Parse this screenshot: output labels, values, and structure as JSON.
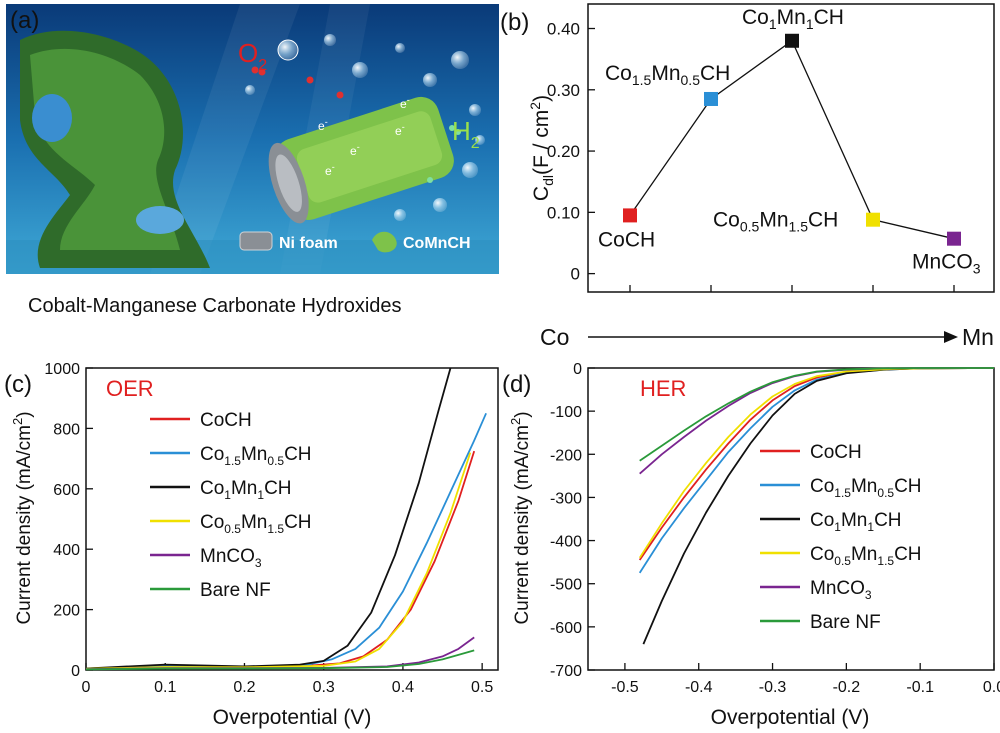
{
  "panels": {
    "a": {
      "label": "(a)",
      "caption": "Cobalt-Manganese Carbonate Hydroxides",
      "o2": "O",
      "o2_sub": "2",
      "h2": "H",
      "h2_sub": "2",
      "electron": "e",
      "electron_sup": "-",
      "legend_nifoam": "Ni foam",
      "legend_comnch": "CoMnCH"
    },
    "b": {
      "label": "(b)"
    },
    "c": {
      "label": "(c)"
    },
    "d": {
      "label": "(d)"
    }
  },
  "colors": {
    "CoCH": "#e02020",
    "Co1.5Mn0.5CH": "#2a8fd6",
    "Co1Mn1CH": "#111111",
    "Co0.5Mn1.5CH": "#f0e000",
    "MnCO3": "#7a2590",
    "BareNF": "#2a9a3a"
  },
  "chart_data": [
    {
      "panel": "b",
      "type": "line",
      "x_tick_labels": [
        "Co",
        "Mn"
      ],
      "ylabel": {
        "main": "C",
        "sub": "dl",
        "rest": "(F / cm",
        "sup": "2",
        "end": ")"
      },
      "ylim": [
        -0.03,
        0.44
      ],
      "y_ticks": [
        "0",
        "0.10",
        "0.20",
        "0.30",
        "0.40"
      ],
      "y_tick_values": [
        0,
        0.1,
        0.2,
        0.3,
        0.4
      ],
      "points": [
        {
          "key": "CoCH",
          "x": 1,
          "y": 0.095,
          "label": [
            [
              "CoCH",
              ""
            ]
          ],
          "color": "CoCH"
        },
        {
          "key": "Co1.5Mn0.5CH",
          "x": 2,
          "y": 0.285,
          "label": [
            [
              "Co",
              ""
            ],
            [
              "1.5",
              "sub"
            ],
            [
              "Mn",
              ""
            ],
            [
              "0.5",
              "sub"
            ],
            [
              "CH",
              ""
            ]
          ],
          "color": "Co1.5Mn0.5CH"
        },
        {
          "key": "Co1Mn1CH",
          "x": 3,
          "y": 0.38,
          "label": [
            [
              "Co",
              ""
            ],
            [
              "1",
              "sub"
            ],
            [
              "Mn",
              ""
            ],
            [
              "1",
              "sub"
            ],
            [
              "CH",
              ""
            ]
          ],
          "color": "Co1Mn1CH"
        },
        {
          "key": "Co0.5Mn1.5CH",
          "x": 4,
          "y": 0.088,
          "label": [
            [
              "Co",
              ""
            ],
            [
              "0.5",
              "sub"
            ],
            [
              "Mn",
              ""
            ],
            [
              "1.5",
              "sub"
            ],
            [
              "CH",
              ""
            ]
          ],
          "color": "Co0.5Mn1.5CH"
        },
        {
          "key": "MnCO3",
          "x": 5,
          "y": 0.057,
          "label": [
            [
              "MnCO",
              ""
            ],
            [
              "3",
              "sub"
            ]
          ],
          "color": "MnCO3"
        }
      ]
    },
    {
      "panel": "c",
      "type": "line",
      "title": "OER",
      "xlabel": "Overpotential (V)",
      "ylabel": {
        "main": "Current density (mA/cm",
        "sup": "2",
        "end": ")"
      },
      "xlim": [
        0,
        0.52
      ],
      "ylim": [
        0,
        1000
      ],
      "x_ticks": [
        "0",
        "0.1",
        "0.2",
        "0.3",
        "0.4",
        "0.5"
      ],
      "x_tick_values": [
        0,
        0.1,
        0.2,
        0.3,
        0.4,
        0.5
      ],
      "y_ticks": [
        "0",
        "200",
        "400",
        "600",
        "800",
        "1000"
      ],
      "y_tick_values": [
        0,
        200,
        400,
        600,
        800,
        1000
      ],
      "series": [
        {
          "key": "CoCH",
          "name": [
            [
              "CoCH",
              ""
            ]
          ],
          "color": "CoCH",
          "x": [
            0,
            0.1,
            0.2,
            0.28,
            0.32,
            0.35,
            0.38,
            0.41,
            0.44,
            0.47,
            0.49
          ],
          "y": [
            5,
            12,
            10,
            14,
            22,
            45,
            100,
            200,
            360,
            560,
            725
          ]
        },
        {
          "key": "Co1.5Mn0.5CH",
          "name": [
            [
              "Co",
              ""
            ],
            [
              "1.5",
              "sub"
            ],
            [
              "Mn",
              ""
            ],
            [
              "0.5",
              "sub"
            ],
            [
              "CH",
              ""
            ]
          ],
          "color": "Co1.5Mn0.5CH",
          "x": [
            0,
            0.1,
            0.2,
            0.28,
            0.31,
            0.34,
            0.37,
            0.4,
            0.43,
            0.46,
            0.49,
            0.505
          ],
          "y": [
            5,
            12,
            10,
            18,
            35,
            70,
            140,
            260,
            420,
            590,
            760,
            850
          ]
        },
        {
          "key": "Co1Mn1CH",
          "name": [
            [
              "Co",
              ""
            ],
            [
              "1",
              "sub"
            ],
            [
              "Mn",
              ""
            ],
            [
              "1",
              "sub"
            ],
            [
              "CH",
              ""
            ]
          ],
          "color": "Co1Mn1CH",
          "x": [
            0,
            0.1,
            0.2,
            0.27,
            0.3,
            0.33,
            0.36,
            0.39,
            0.42,
            0.445,
            0.46
          ],
          "y": [
            5,
            18,
            12,
            18,
            30,
            80,
            190,
            380,
            620,
            860,
            1000
          ]
        },
        {
          "key": "Co0.5Mn1.5CH",
          "name": [
            [
              "Co",
              ""
            ],
            [
              "0.5",
              "sub"
            ],
            [
              "Mn",
              ""
            ],
            [
              "1.5",
              "sub"
            ],
            [
              "CH",
              ""
            ]
          ],
          "color": "Co0.5Mn1.5CH",
          "x": [
            0,
            0.1,
            0.2,
            0.3,
            0.34,
            0.37,
            0.4,
            0.43,
            0.46,
            0.485
          ],
          "y": [
            4,
            10,
            9,
            14,
            28,
            70,
            160,
            320,
            520,
            720
          ]
        },
        {
          "key": "MnCO3",
          "name": [
            [
              "MnCO",
              ""
            ],
            [
              "3",
              "sub"
            ]
          ],
          "color": "MnCO3",
          "x": [
            0,
            0.1,
            0.2,
            0.3,
            0.38,
            0.42,
            0.45,
            0.47,
            0.49
          ],
          "y": [
            3,
            6,
            6,
            7,
            12,
            25,
            45,
            70,
            108
          ]
        },
        {
          "key": "BareNF",
          "name": [
            [
              "Bare NF",
              ""
            ]
          ],
          "color": "BareNF",
          "x": [
            0,
            0.1,
            0.2,
            0.3,
            0.38,
            0.42,
            0.45,
            0.47,
            0.49
          ],
          "y": [
            2,
            5,
            5,
            6,
            10,
            20,
            35,
            50,
            65
          ]
        }
      ]
    },
    {
      "panel": "d",
      "type": "line",
      "title": "HER",
      "xlabel": "Overpotential (V)",
      "ylabel": {
        "main": "Current density (mA/cm",
        "sup": "2",
        "end": ")"
      },
      "xlim": [
        -0.55,
        0
      ],
      "ylim": [
        -700,
        0
      ],
      "x_ticks": [
        "-0.5",
        "-0.4",
        "-0.3",
        "-0.2",
        "-0.1",
        "0.0"
      ],
      "x_tick_values": [
        -0.5,
        -0.4,
        -0.3,
        -0.2,
        -0.1,
        0
      ],
      "y_ticks": [
        "0",
        "-100",
        "-200",
        "-300",
        "-400",
        "-500",
        "-600",
        "-700"
      ],
      "y_tick_values": [
        0,
        -100,
        -200,
        -300,
        -400,
        -500,
        -600,
        -700
      ],
      "series": [
        {
          "key": "CoCH",
          "name": [
            [
              "CoCH",
              ""
            ]
          ],
          "color": "CoCH",
          "x": [
            -0.48,
            -0.45,
            -0.42,
            -0.39,
            -0.36,
            -0.33,
            -0.3,
            -0.27,
            -0.24,
            -0.2,
            -0.15,
            -0.1,
            0
          ],
          "y": [
            -445,
            -370,
            -300,
            -235,
            -175,
            -120,
            -75,
            -42,
            -22,
            -9,
            -3,
            -1,
            0
          ]
        },
        {
          "key": "Co1.5Mn0.5CH",
          "name": [
            [
              "Co",
              ""
            ],
            [
              "1.5",
              "sub"
            ],
            [
              "Mn",
              ""
            ],
            [
              "0.5",
              "sub"
            ],
            [
              "CH",
              ""
            ]
          ],
          "color": "Co1.5Mn0.5CH",
          "x": [
            -0.48,
            -0.45,
            -0.42,
            -0.39,
            -0.36,
            -0.33,
            -0.3,
            -0.27,
            -0.24,
            -0.2,
            -0.15,
            -0.1,
            0
          ],
          "y": [
            -475,
            -395,
            -325,
            -260,
            -195,
            -140,
            -90,
            -52,
            -27,
            -11,
            -4,
            -1,
            0
          ]
        },
        {
          "key": "Co1Mn1CH",
          "name": [
            [
              "Co",
              ""
            ],
            [
              "1",
              "sub"
            ],
            [
              "Mn",
              ""
            ],
            [
              "1",
              "sub"
            ],
            [
              "CH",
              ""
            ]
          ],
          "color": "Co1Mn1CH",
          "x": [
            -0.475,
            -0.45,
            -0.42,
            -0.39,
            -0.36,
            -0.33,
            -0.3,
            -0.27,
            -0.24,
            -0.2,
            -0.15,
            -0.1,
            0
          ],
          "y": [
            -640,
            -540,
            -430,
            -335,
            -250,
            -175,
            -110,
            -60,
            -30,
            -12,
            -4,
            -1,
            0
          ]
        },
        {
          "key": "Co0.5Mn1.5CH",
          "name": [
            [
              "Co",
              ""
            ],
            [
              "0.5",
              "sub"
            ],
            [
              "Mn",
              ""
            ],
            [
              "1.5",
              "sub"
            ],
            [
              "CH",
              ""
            ]
          ],
          "color": "Co0.5Mn1.5CH",
          "x": [
            -0.48,
            -0.45,
            -0.42,
            -0.39,
            -0.36,
            -0.33,
            -0.3,
            -0.27,
            -0.24,
            -0.2,
            -0.15,
            -0.1,
            0
          ],
          "y": [
            -440,
            -360,
            -285,
            -220,
            -160,
            -108,
            -66,
            -37,
            -19,
            -8,
            -3,
            -1,
            0
          ]
        },
        {
          "key": "MnCO3",
          "name": [
            [
              "MnCO",
              ""
            ],
            [
              "3",
              "sub"
            ]
          ],
          "color": "MnCO3",
          "x": [
            -0.48,
            -0.45,
            -0.42,
            -0.39,
            -0.36,
            -0.33,
            -0.3,
            -0.27,
            -0.24,
            -0.2,
            -0.15,
            -0.1,
            0
          ],
          "y": [
            -245,
            -200,
            -160,
            -122,
            -88,
            -58,
            -35,
            -19,
            -9,
            -4,
            -1,
            0,
            0
          ]
        },
        {
          "key": "BareNF",
          "name": [
            [
              "Bare NF",
              ""
            ]
          ],
          "color": "BareNF",
          "x": [
            -0.48,
            -0.45,
            -0.42,
            -0.39,
            -0.36,
            -0.33,
            -0.3,
            -0.27,
            -0.24,
            -0.2,
            -0.15,
            -0.1,
            0
          ],
          "y": [
            -215,
            -180,
            -145,
            -112,
            -82,
            -55,
            -33,
            -18,
            -8,
            -3,
            -1,
            0,
            0
          ]
        }
      ]
    }
  ]
}
